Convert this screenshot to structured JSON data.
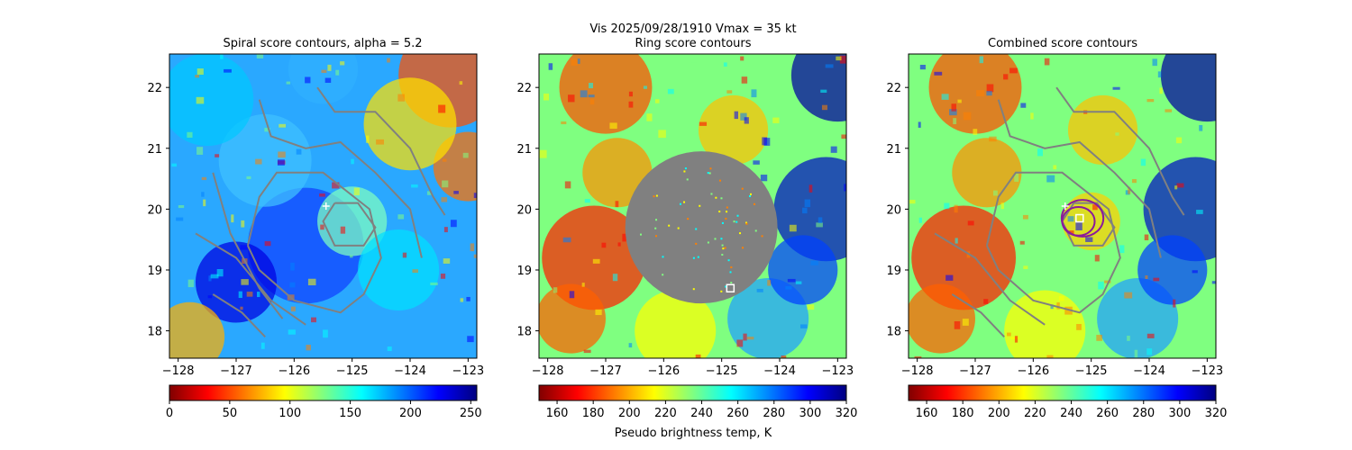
{
  "chart_data": {
    "type": "heatmap",
    "suptitle_line1": "Vis  2025/09/28/1910    Vmax = 35 kt",
    "colorbar_label": "Pseudo brightness temp, K",
    "x_range": [
      -128.15,
      -122.85
    ],
    "y_range": [
      17.55,
      22.55
    ],
    "panels": [
      {
        "title": "Spiral score contours, alpha =  5.2",
        "x_ticks": [
          -128,
          -127,
          -126,
          -125,
          -124,
          -123
        ],
        "x_tick_labels": [
          "−128",
          "−127",
          "−126",
          "−125",
          "−124",
          "−123"
        ],
        "y_ticks": [
          18,
          19,
          20,
          21,
          22
        ],
        "y_tick_labels": [
          "18",
          "19",
          "20",
          "21",
          "22"
        ],
        "colorbar": {
          "range": [
            0,
            255
          ],
          "ticks": [
            0,
            50,
            100,
            150,
            200,
            250
          ],
          "tick_labels": [
            "0",
            "50",
            "100",
            "150",
            "200",
            "250"
          ],
          "colormap": "jet_r"
        },
        "markers": [
          {
            "kind": "plus",
            "lon": -125.45,
            "lat": 20.05,
            "color": "#ffffff"
          }
        ],
        "contours": "spiral"
      },
      {
        "title": "Ring score contours",
        "x_ticks": [
          -128,
          -127,
          -126,
          -125,
          -124,
          -123
        ],
        "x_tick_labels": [
          "−128",
          "−127",
          "−126",
          "−125",
          "−124",
          "−123"
        ],
        "y_ticks": [
          18,
          19,
          20,
          21,
          22
        ],
        "y_tick_labels": [
          "18",
          "19",
          "20",
          "21",
          "22"
        ],
        "colorbar": {
          "range": [
            150,
            320
          ],
          "ticks": [
            160,
            180,
            200,
            220,
            240,
            260,
            280,
            300,
            320
          ],
          "tick_labels": [
            "160",
            "180",
            "200",
            "220",
            "240",
            "260",
            "280",
            "300",
            "320"
          ],
          "colormap": "jet_r"
        },
        "markers": [
          {
            "kind": "square",
            "lon": -124.85,
            "lat": 18.7,
            "color": "#ffffff"
          }
        ],
        "mask": {
          "center_lon": -125.35,
          "center_lat": 19.7,
          "radius_deg": 1.25,
          "color": "#808080"
        }
      },
      {
        "title": "Combined score contours",
        "x_ticks": [
          -128,
          -127,
          -126,
          -125,
          -124,
          -123
        ],
        "x_tick_labels": [
          "−128",
          "−127",
          "−126",
          "−125",
          "−124",
          "−123"
        ],
        "y_ticks": [
          18,
          19,
          20,
          21,
          22
        ],
        "y_tick_labels": [
          "18",
          "19",
          "20",
          "21",
          "22"
        ],
        "colorbar": {
          "range": [
            150,
            320
          ],
          "ticks": [
            160,
            180,
            200,
            220,
            240,
            260,
            280,
            300,
            320
          ],
          "tick_labels": [
            "160",
            "180",
            "200",
            "220",
            "240",
            "260",
            "280",
            "300",
            "320"
          ],
          "colormap": "jet_r"
        },
        "markers": [
          {
            "kind": "plus",
            "lon": -125.45,
            "lat": 20.05,
            "color": "#ffffff"
          },
          {
            "kind": "square",
            "lon": -125.2,
            "lat": 19.85,
            "color": "#ffffff"
          }
        ],
        "circles": [
          {
            "center_lon": -125.15,
            "center_lat": 19.85,
            "radius_deg": 0.36,
            "color": "#8b1a9b"
          },
          {
            "center_lon": -125.22,
            "center_lat": 19.8,
            "radius_deg": 0.28,
            "color": "#8b1a9b"
          }
        ],
        "contours": "combined"
      }
    ]
  }
}
